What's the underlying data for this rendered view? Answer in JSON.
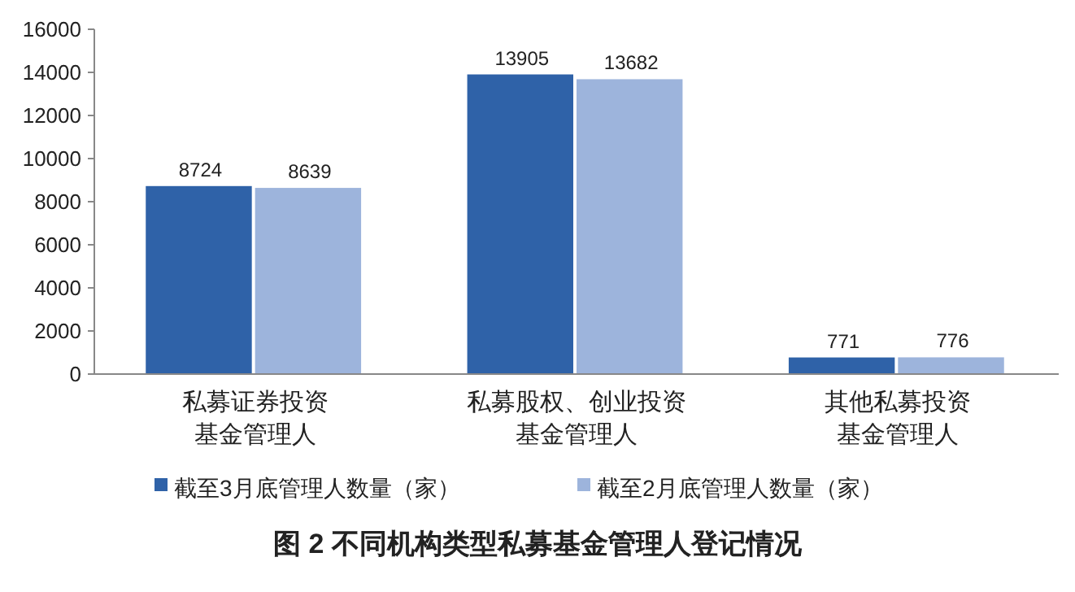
{
  "chart_data": {
    "type": "bar",
    "title": "图 2  不同机构类型私募基金管理人登记情况",
    "categories": [
      "私募证券投资基金管理人",
      "私募股权、创业投资基金管理人",
      "其他私募投资基金管理人"
    ],
    "series": [
      {
        "name": "截至3月底管理人数量（家）",
        "color": "#2f62a8",
        "values": [
          8724,
          13905,
          771
        ]
      },
      {
        "name": "截至2月底管理人数量（家）",
        "color": "#9db4dc",
        "values": [
          8639,
          13682,
          776
        ]
      }
    ],
    "ylim": [
      0,
      16000
    ],
    "yticks": [
      0,
      2000,
      4000,
      6000,
      8000,
      10000,
      12000,
      14000,
      16000
    ],
    "data_labels": true,
    "legend": "bottom",
    "grid": false
  }
}
